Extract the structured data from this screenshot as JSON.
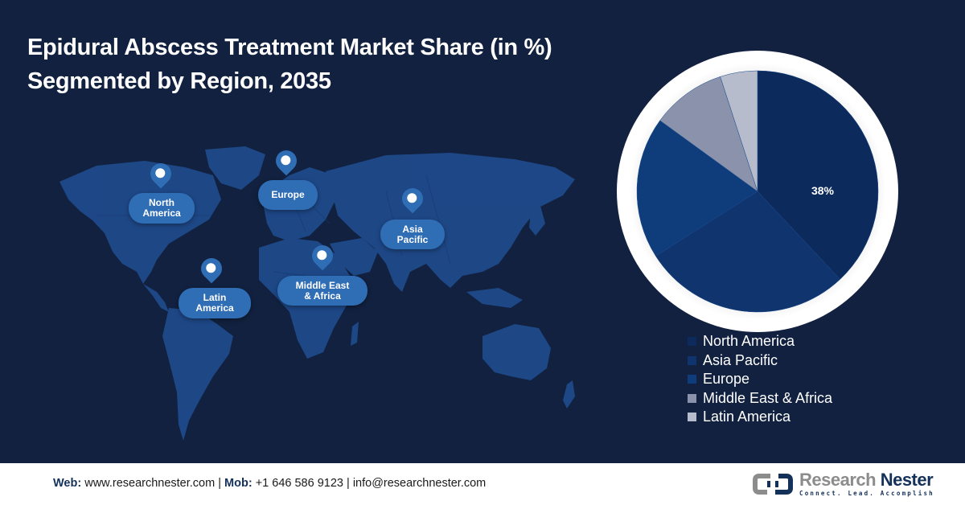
{
  "header": {
    "title_line1": "Epidural Abscess Treatment Market Share (in %)",
    "title_line2": "Segmented by Region, 2035"
  },
  "map": {
    "markers": [
      {
        "label": "North America",
        "line1": "North",
        "line2": "America"
      },
      {
        "label": "Europe",
        "line1": "Europe",
        "line2": ""
      },
      {
        "label": "Asia Pacific",
        "line1": "Asia",
        "line2": "Pacific"
      },
      {
        "label": "Latin America",
        "line1": "Latin",
        "line2": "America"
      },
      {
        "label": "Middle East & Africa",
        "line1": "Middle East",
        "line2": "& Africa"
      }
    ],
    "colors": {
      "land": "#1f4a8a",
      "pin": "#2f6db5"
    }
  },
  "chart_data": {
    "type": "pie",
    "title": "Epidural Abscess Treatment Market Share (in %) Segmented by Region, 2035",
    "categories": [
      "North America",
      "Asia Pacific",
      "Europe",
      "Middle East & Africa",
      "Latin America"
    ],
    "values": [
      38,
      28,
      19,
      10,
      5
    ],
    "colors": [
      "#0d2a5c",
      "#10346e",
      "#0f3d7c",
      "#8a93ab",
      "#b6bccb"
    ],
    "data_labels": [
      {
        "category": "North America",
        "text": "38%"
      }
    ],
    "start_angle": "12 o'clock",
    "direction": "clockwise",
    "legend_position": "bottom-right"
  },
  "legend": {
    "items": [
      {
        "label": "North America",
        "color": "#0d2a5c"
      },
      {
        "label": "Asia Pacific",
        "color": "#10346e"
      },
      {
        "label": "Europe",
        "color": "#0f3d7c"
      },
      {
        "label": "Middle East & Africa",
        "color": "#8a93ab"
      },
      {
        "label": "Latin America",
        "color": "#b6bccb"
      }
    ]
  },
  "footer": {
    "web_label": "Web:",
    "web_value": "www.researchnester.com",
    "sep1": "|",
    "mob_label": "Mob:",
    "mob_value": "+1 646 586 9123",
    "sep2": "|",
    "email": "info@researchnester.com",
    "logo_name_1": "Research",
    "logo_name_2": "Nester",
    "logo_tagline": "Connect. Lead. Accomplish"
  }
}
